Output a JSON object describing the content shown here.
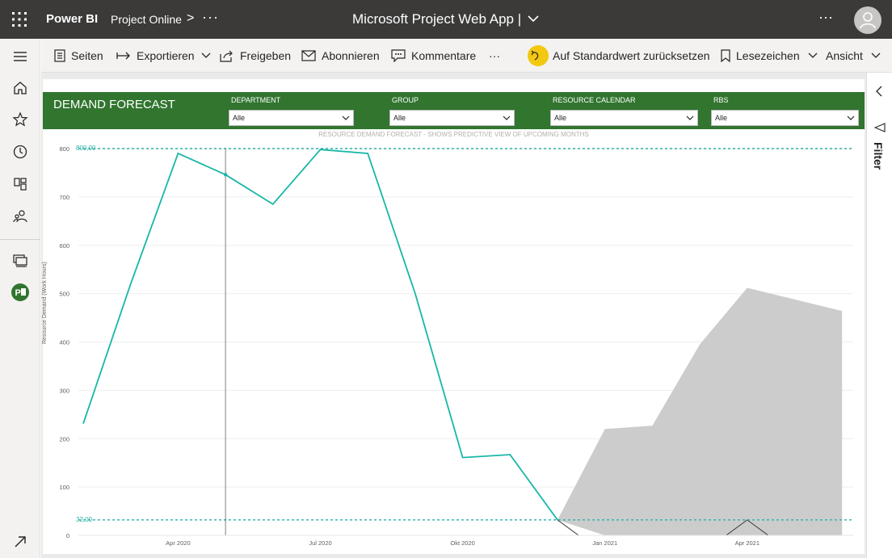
{
  "topbar": {
    "brand": "Power BI",
    "workspace": "Project Online",
    "chevron": ">",
    "more": "···",
    "title": "Microsoft Project Web App  |",
    "more_right": "···"
  },
  "toolbar": {
    "pages": "Seiten",
    "export": "Exportieren",
    "share": "Freigeben",
    "subscribe": "Abonnieren",
    "comments": "Kommentare",
    "more": "···",
    "reset": "Auf Standardwert zurücksetzen",
    "bookmarks": "Lesezeichen",
    "view": "Ansicht"
  },
  "filter_pane": {
    "label": "Filter"
  },
  "report": {
    "banner_title": "DEMAND FORECAST",
    "slicers": [
      {
        "label": "DEPARTMENT",
        "value": "Alle"
      },
      {
        "label": "GROUP",
        "value": "Alle"
      },
      {
        "label": "RESOURCE CALENDAR",
        "value": "Alle"
      },
      {
        "label": "RBS",
        "value": "Alle"
      }
    ]
  },
  "colors": {
    "banner": "#31752f",
    "line": "#17b7a6",
    "forecast_band": "#cccccc",
    "reference": "#2ab3a6",
    "accent_yellow": "#f2c811"
  },
  "chart_data": {
    "type": "line",
    "title": "RESOURCE DEMAND FORECAST - SHOWS PREDICTIVE VIEW OF UPCOMING MONTHS",
    "ylabel": "Resource Demand (Work Hours)",
    "xlabel": "",
    "ylim": [
      0,
      800
    ],
    "yticks": [
      0,
      100,
      200,
      300,
      400,
      500,
      600,
      700,
      800
    ],
    "xticks": [
      "Apr 2020",
      "Jul 2020",
      "Okt 2020",
      "Jan 2021",
      "Apr 2021"
    ],
    "grid": true,
    "reference_lines": [
      {
        "label": "800,00",
        "value": 800
      },
      {
        "label": "32,00",
        "value": 32
      }
    ],
    "x": [
      "2020-02",
      "2020-03",
      "2020-04",
      "2020-05",
      "2020-06",
      "2020-07",
      "2020-08",
      "2020-09",
      "2020-10",
      "2020-11",
      "2020-12",
      "2021-01",
      "2021-02",
      "2021-03",
      "2021-04",
      "2021-05",
      "2021-06"
    ],
    "series": [
      {
        "values": [
          231,
          520,
          790,
          746,
          685,
          798,
          790,
          500,
          161,
          167,
          32,
          null,
          null,
          null,
          null,
          null,
          null
        ]
      }
    ],
    "forecast_band": {
      "x": [
        "2020-12",
        "2021-01",
        "2021-02",
        "2021-03",
        "2021-04",
        "2021-05",
        "2021-06"
      ],
      "upper": [
        32,
        220,
        227,
        395,
        512,
        488,
        464
      ],
      "lower": [
        32,
        0,
        0,
        0,
        0,
        0,
        0
      ]
    },
    "forecast_line": {
      "x": [
        "2020-12",
        "2021-01",
        "2021-02",
        "2021-03",
        "2021-04",
        "2021-05"
      ],
      "values": [
        32,
        -40,
        -40,
        -40,
        32,
        -40
      ]
    },
    "cursor_x": "2020-05"
  }
}
